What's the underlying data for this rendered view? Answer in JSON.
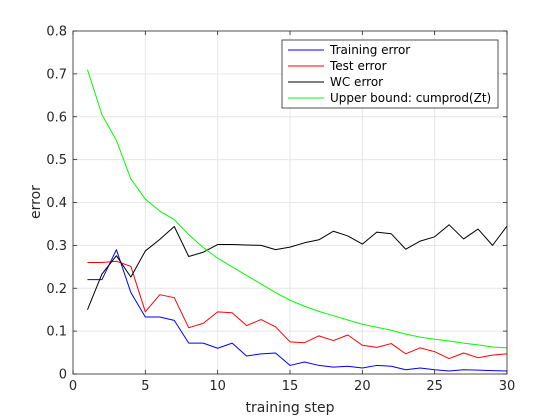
{
  "chart_data": {
    "type": "line",
    "xlabel": "training step",
    "ylabel": "error",
    "xlim": [
      0,
      30
    ],
    "ylim": [
      0,
      0.8
    ],
    "xticks": [
      0,
      5,
      10,
      15,
      20,
      25,
      30
    ],
    "yticks": [
      0,
      0.1,
      0.2,
      0.3,
      0.4,
      0.5,
      0.6,
      0.7,
      0.8
    ],
    "xtick_labels": [
      "0",
      "5",
      "10",
      "15",
      "20",
      "25",
      "30"
    ],
    "ytick_labels": [
      "0",
      "0.1",
      "0.2",
      "0.3",
      "0.4",
      "0.5",
      "0.6",
      "0.7",
      "0.8"
    ],
    "grid": true,
    "legend_position": "top-right",
    "x": [
      1,
      2,
      3,
      4,
      5,
      6,
      7,
      8,
      9,
      10,
      11,
      12,
      13,
      14,
      15,
      16,
      17,
      18,
      19,
      20,
      21,
      22,
      23,
      24,
      25,
      26,
      27,
      28,
      29,
      30
    ],
    "series": [
      {
        "name": "Training error",
        "color": "#0000ff",
        "values": [
          0.22,
          0.22,
          0.29,
          0.19,
          0.133,
          0.133,
          0.125,
          0.072,
          0.072,
          0.06,
          0.072,
          0.042,
          0.047,
          0.049,
          0.02,
          0.028,
          0.02,
          0.016,
          0.018,
          0.014,
          0.02,
          0.018,
          0.01,
          0.014,
          0.01,
          0.007,
          0.01,
          0.009,
          0.008,
          0.007
        ]
      },
      {
        "name": "Test error",
        "color": "#ff0000",
        "values": [
          0.26,
          0.26,
          0.263,
          0.251,
          0.145,
          0.185,
          0.178,
          0.108,
          0.118,
          0.145,
          0.143,
          0.113,
          0.127,
          0.11,
          0.075,
          0.073,
          0.089,
          0.078,
          0.091,
          0.067,
          0.062,
          0.071,
          0.047,
          0.061,
          0.052,
          0.036,
          0.049,
          0.038,
          0.044,
          0.047
        ]
      },
      {
        "name": "WC error",
        "color": "#000000",
        "values": [
          0.15,
          0.233,
          0.276,
          0.226,
          0.287,
          0.314,
          0.344,
          0.274,
          0.284,
          0.302,
          0.302,
          0.301,
          0.3,
          0.29,
          0.296,
          0.306,
          0.313,
          0.333,
          0.322,
          0.303,
          0.331,
          0.327,
          0.291,
          0.31,
          0.32,
          0.348,
          0.315,
          0.338,
          0.3,
          0.345
        ]
      },
      {
        "name": "Upper bound: cumprod(Zt)",
        "color": "#00ff00",
        "values": [
          0.71,
          0.605,
          0.545,
          0.455,
          0.408,
          0.38,
          0.36,
          0.325,
          0.295,
          0.27,
          0.25,
          0.23,
          0.21,
          0.19,
          0.172,
          0.158,
          0.146,
          0.136,
          0.126,
          0.116,
          0.109,
          0.102,
          0.093,
          0.086,
          0.081,
          0.077,
          0.072,
          0.068,
          0.063,
          0.061
        ]
      }
    ]
  }
}
